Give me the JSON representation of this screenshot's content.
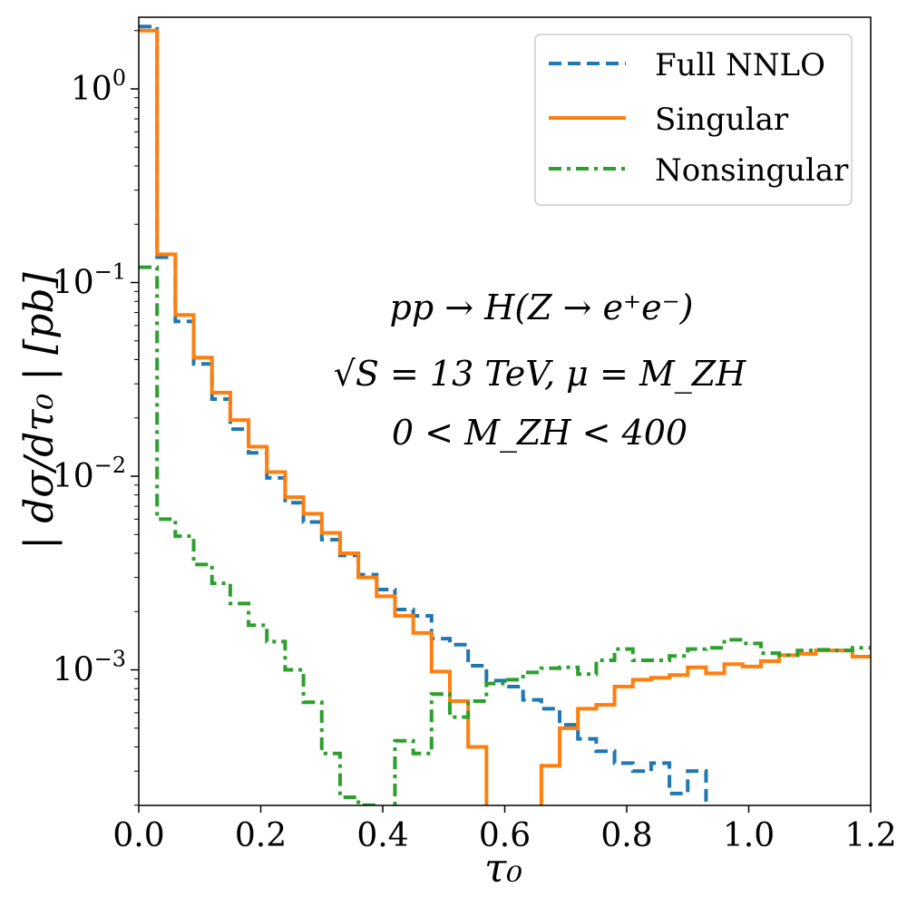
{
  "chart_data": {
    "type": "line",
    "style": "step",
    "xlabel": "τ₀",
    "ylabel": "| dσ/dτ₀ |   [pb]",
    "xlim": [
      0.0,
      1.2
    ],
    "ylim_log10": [
      -3.7,
      0.37
    ],
    "yscale": "log",
    "x_ticks": [
      {
        "value": 0.0,
        "label": "0.0"
      },
      {
        "value": 0.2,
        "label": "0.2"
      },
      {
        "value": 0.4,
        "label": "0.4"
      },
      {
        "value": 0.6,
        "label": "0.6"
      },
      {
        "value": 0.8,
        "label": "0.8"
      },
      {
        "value": 1.0,
        "label": "1.0"
      },
      {
        "value": 1.2,
        "label": "1.2"
      }
    ],
    "y_ticks": [
      {
        "value": 1,
        "base": "10",
        "exp": "0"
      },
      {
        "value": 0.1,
        "base": "10",
        "exp": "−1"
      },
      {
        "value": 0.01,
        "base": "10",
        "exp": "−2"
      },
      {
        "value": 0.001,
        "base": "10",
        "exp": "−3"
      }
    ],
    "legend": {
      "position": "top-right",
      "entries": [
        "Full NNLO",
        "Singular",
        "Nonsingular"
      ]
    },
    "annotations": [
      "pp → H(Z → e⁺e⁻)",
      "√S = 13 TeV,  μ = M_ZH",
      "0 < M_ZH < 400"
    ],
    "bin_edges": [
      0.0,
      0.03,
      0.06,
      0.09,
      0.12,
      0.15,
      0.18,
      0.21,
      0.24,
      0.27,
      0.3,
      0.33,
      0.36,
      0.39,
      0.42,
      0.45,
      0.48,
      0.51,
      0.54,
      0.57,
      0.6,
      0.63,
      0.66,
      0.69,
      0.72,
      0.75,
      0.78,
      0.81,
      0.84,
      0.87,
      0.9,
      0.93,
      0.96,
      0.99,
      1.02,
      1.05,
      1.08,
      1.11,
      1.14,
      1.17,
      1.2
    ],
    "series": [
      {
        "name": "Full NNLO",
        "color": "#1f77b4",
        "dash": "dashed",
        "values": [
          2.1,
          0.135,
          0.063,
          0.038,
          0.025,
          0.0175,
          0.0132,
          0.0098,
          0.0073,
          0.0058,
          0.0047,
          0.0039,
          0.0031,
          0.0026,
          0.00205,
          0.0019,
          0.00145,
          0.00135,
          0.00105,
          0.00088,
          0.00082,
          0.0007,
          0.00063,
          0.00052,
          0.00044,
          0.00038,
          0.00033,
          0.0003,
          0.00033,
          0.00023,
          0.0003,
          null,
          null,
          null,
          null,
          null,
          null,
          null,
          null,
          null
        ]
      },
      {
        "name": "Singular",
        "color": "#ff7f0e",
        "dash": "solid",
        "values": [
          2.0,
          0.14,
          0.068,
          0.041,
          0.027,
          0.0195,
          0.0142,
          0.0105,
          0.0078,
          0.0064,
          0.0051,
          0.004,
          0.003,
          0.0024,
          0.0019,
          0.00155,
          0.00098,
          0.00069,
          0.0004,
          null,
          null,
          null,
          0.00032,
          0.0005,
          0.00063,
          0.00066,
          0.00082,
          0.00089,
          0.00091,
          0.00094,
          0.00103,
          0.00096,
          0.00107,
          0.00104,
          0.00111,
          0.00119,
          0.00121,
          0.00126,
          0.00126,
          0.00117
        ]
      },
      {
        "name": "Nonsingular",
        "color": "#2ca02c",
        "dash": "dashdot",
        "values": [
          0.12,
          0.006,
          0.0049,
          0.0035,
          0.0028,
          0.0022,
          0.0017,
          0.0014,
          0.001,
          0.00068,
          0.00037,
          0.00022,
          0.0002,
          null,
          0.00043,
          0.00037,
          0.00075,
          0.00057,
          0.00069,
          0.00085,
          0.00089,
          0.00097,
          0.00102,
          0.00103,
          0.00095,
          0.00112,
          0.00128,
          0.00112,
          0.00112,
          0.00118,
          0.00128,
          0.0013,
          0.00143,
          0.00137,
          0.00122,
          0.00119,
          0.00126,
          0.00127,
          0.00126,
          0.0013
        ]
      }
    ]
  }
}
